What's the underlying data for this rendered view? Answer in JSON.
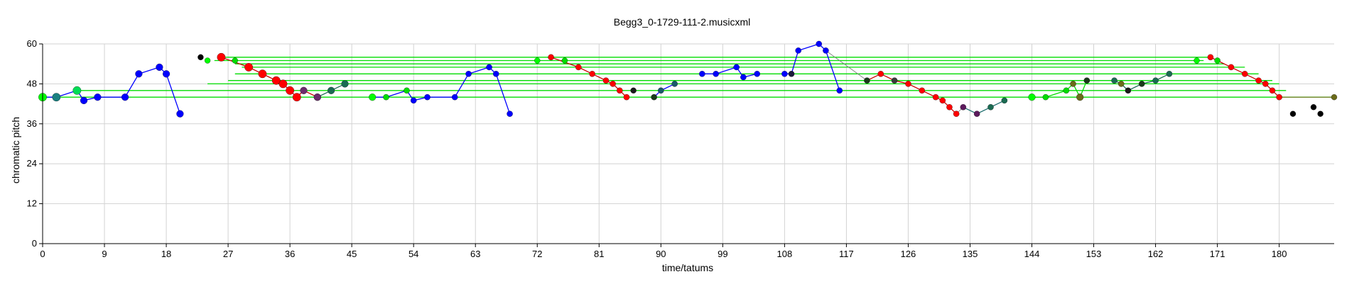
{
  "chart_data": {
    "type": "line",
    "title": "Begg3_0-1729-111-2.musicxml",
    "xlabel": "time/tatums",
    "ylabel": "chromatic pitch",
    "xlim": [
      0,
      188
    ],
    "ylim": [
      0,
      60
    ],
    "xticks": [
      0,
      9,
      18,
      27,
      36,
      45,
      54,
      63,
      72,
      81,
      90,
      99,
      108,
      117,
      126,
      135,
      144,
      153,
      162,
      171,
      180
    ],
    "yticks": [
      0,
      12,
      24,
      36,
      48,
      60
    ],
    "grid": true,
    "colors": {
      "green": "#00e600",
      "bright_green": "#00ff00",
      "red": "#ff0000",
      "dark_red": "#cc0000",
      "blue": "#0000ff",
      "black": "#000000",
      "grid": "#d3d3d3",
      "teal": "#1a6b52",
      "purple": "#5c1a5c",
      "olive": "#6b6b1a",
      "orange_line": "#a0522d",
      "gray_line": "#808080"
    },
    "hlines": [
      {
        "y": 44,
        "x0": 0,
        "x1": 188,
        "color": "#00dd00"
      },
      {
        "y": 46,
        "x0": 5,
        "x1": 181,
        "color": "#00dd00"
      },
      {
        "y": 48,
        "x0": 24,
        "x1": 180,
        "color": "#00dd00"
      },
      {
        "y": 49,
        "x0": 27,
        "x1": 179,
        "color": "#00dd00"
      },
      {
        "y": 51,
        "x0": 28,
        "x1": 177,
        "color": "#00dd00"
      },
      {
        "y": 53,
        "x0": 29,
        "x1": 175,
        "color": "#00dd00"
      },
      {
        "y": 54,
        "x0": 28,
        "x1": 172,
        "color": "#00dd00"
      },
      {
        "y": 55,
        "x0": 25,
        "x1": 169,
        "color": "#00dd00"
      },
      {
        "y": 56,
        "x0": 26,
        "x1": 170,
        "color": "#00dd00"
      }
    ],
    "series": [
      {
        "name": "blue-phrase-1",
        "color": "#0000ff",
        "line_color": "#0000ff",
        "points": [
          [
            0,
            44
          ],
          [
            2,
            44
          ],
          [
            5,
            46
          ],
          [
            6,
            43
          ],
          [
            8,
            44
          ],
          [
            12,
            44
          ],
          [
            14,
            51
          ],
          [
            17,
            53
          ],
          [
            18,
            51
          ],
          [
            20,
            39
          ]
        ],
        "sizes": [
          7,
          7,
          7,
          6,
          6,
          6,
          6,
          6,
          6,
          6
        ],
        "colors": [
          "#00ff00",
          "#1a8080",
          "#00dd55",
          "#0000ff",
          "#0000ff",
          "#0000ff",
          "#0000ff",
          "#0000ff",
          "#0000ff",
          "#0000ff"
        ]
      },
      {
        "name": "red-phrase-1",
        "color": "#ff0000",
        "line_color": "#cc0000",
        "points": [
          [
            26,
            56
          ],
          [
            30,
            53
          ],
          [
            32,
            51
          ],
          [
            34,
            49
          ],
          [
            35,
            48
          ],
          [
            36,
            46
          ],
          [
            37,
            44
          ],
          [
            38,
            46
          ],
          [
            40,
            44
          ]
        ],
        "sizes": [
          7,
          7,
          7,
          7,
          7,
          7,
          7,
          6,
          6
        ],
        "colors": [
          "#ff0000",
          "#ff0000",
          "#ff0000",
          "#ff0000",
          "#ff0000",
          "#ff0000",
          "#ff0000",
          "#6b2a6b",
          "#6b2a6b"
        ]
      },
      {
        "name": "teal-tail-1",
        "color": "#1a6b52",
        "line_color": "#1a6b52",
        "points": [
          [
            40,
            44
          ],
          [
            42,
            46
          ],
          [
            44,
            48
          ]
        ],
        "sizes": [
          6,
          6,
          6
        ],
        "colors": [
          "#6b2a6b",
          "#1a6b52",
          "#1a6b52"
        ]
      },
      {
        "name": "blue-phrase-2",
        "color": "#0000ff",
        "line_color": "#0000ff",
        "points": [
          [
            48,
            44
          ],
          [
            50,
            44
          ],
          [
            53,
            46
          ],
          [
            54,
            43
          ],
          [
            56,
            44
          ],
          [
            60,
            44
          ],
          [
            62,
            51
          ],
          [
            65,
            53
          ],
          [
            66,
            51
          ],
          [
            68,
            39
          ]
        ],
        "sizes": [
          6,
          5,
          5,
          5,
          5,
          5,
          5,
          5,
          5,
          5
        ],
        "colors": [
          "#00ff00",
          "#00dd00",
          "#00dd00",
          "#0000ff",
          "#0000ff",
          "#0000ff",
          "#0000ff",
          "#0000ff",
          "#0000ff",
          "#0000ff"
        ]
      },
      {
        "name": "red-phrase-2",
        "color": "#ff0000",
        "line_color": "#cc0000",
        "points": [
          [
            74,
            56
          ],
          [
            78,
            53
          ],
          [
            80,
            51
          ],
          [
            82,
            49
          ],
          [
            83,
            48
          ],
          [
            84,
            46
          ],
          [
            85,
            44
          ]
        ],
        "sizes": [
          5,
          5,
          5,
          5,
          5,
          5,
          5
        ],
        "colors": [
          "#ff0000",
          "#ff0000",
          "#ff0000",
          "#ff0000",
          "#ff0000",
          "#ff0000",
          "#ff0000"
        ]
      },
      {
        "name": "blue-phrase-3",
        "color": "#0000ff",
        "line_color": "#0000ff",
        "points": [
          [
            89,
            44
          ],
          [
            90,
            46
          ],
          [
            92,
            48
          ]
        ],
        "sizes": [
          5,
          5,
          5
        ],
        "colors": [
          "#1a3a1a",
          "#1a5a6b",
          "#1a5a6b"
        ]
      },
      {
        "name": "blue-phrase-4",
        "color": "#0000ff",
        "line_color": "#0000ff",
        "points": [
          [
            96,
            51
          ],
          [
            98,
            51
          ],
          [
            101,
            53
          ],
          [
            102,
            50
          ],
          [
            104,
            51
          ]
        ],
        "sizes": [
          5,
          5,
          5,
          5,
          5
        ],
        "colors": [
          "#0000ff",
          "#0000ff",
          "#0000ff",
          "#0000ff",
          "#0000ff"
        ]
      },
      {
        "name": "blue-phrase-5",
        "color": "#0000ff",
        "line_color": "#0000ff",
        "points": [
          [
            108,
            51
          ],
          [
            109,
            51
          ],
          [
            110,
            58
          ],
          [
            113,
            60
          ],
          [
            114,
            58
          ],
          [
            116,
            46
          ]
        ],
        "sizes": [
          5,
          5,
          5,
          5,
          5,
          5
        ],
        "colors": [
          "#0000ff",
          "#1a1a3a",
          "#0000ff",
          "#0000ff",
          "#0000ff",
          "#0000ff"
        ]
      },
      {
        "name": "red-phrase-3",
        "color": "#ff0000",
        "line_color": "#cc0000",
        "points": [
          [
            120,
            49
          ],
          [
            122,
            51
          ],
          [
            124,
            49
          ],
          [
            126,
            48
          ],
          [
            128,
            46
          ],
          [
            130,
            44
          ],
          [
            131,
            43
          ],
          [
            132,
            41
          ],
          [
            133,
            39
          ]
        ],
        "sizes": [
          5,
          5,
          5,
          5,
          5,
          5,
          5,
          5,
          5
        ],
        "colors": [
          "#1a3a1a",
          "#ff0000",
          "#3a3a3a",
          "#ff0000",
          "#ff0000",
          "#ff0000",
          "#ff0000",
          "#ff0000",
          "#ff0000"
        ]
      },
      {
        "name": "teal-phrase-3",
        "color": "#1a6b52",
        "line_color": "#1a6b6b",
        "points": [
          [
            134,
            41
          ],
          [
            136,
            39
          ],
          [
            138,
            41
          ],
          [
            140,
            43
          ]
        ],
        "sizes": [
          5,
          5,
          5,
          5
        ],
        "colors": [
          "#5c1a5c",
          "#5c1a5c",
          "#1a6b52",
          "#1a6b52"
        ]
      },
      {
        "name": "green-phrase-4",
        "color": "#00ff00",
        "line_color": "#00dd00",
        "points": [
          [
            144,
            44
          ],
          [
            146,
            44
          ],
          [
            149,
            46
          ],
          [
            150,
            48
          ],
          [
            151,
            44
          ],
          [
            152,
            49
          ]
        ],
        "sizes": [
          6,
          5,
          5,
          5,
          6,
          5
        ],
        "colors": [
          "#00ff00",
          "#00dd00",
          "#00dd00",
          "#6b6b1a",
          "#6b6b1a",
          "#1a3a1a"
        ]
      },
      {
        "name": "teal-phrase-4",
        "color": "#1a6b52",
        "line_color": "#1a6b52",
        "points": [
          [
            156,
            49
          ],
          [
            157,
            48
          ],
          [
            158,
            46
          ],
          [
            160,
            48
          ],
          [
            162,
            49
          ],
          [
            164,
            51
          ]
        ],
        "sizes": [
          5,
          5,
          5,
          5,
          5,
          5
        ],
        "colors": [
          "#1a6b52",
          "#6b6b1a",
          "#1a1a1a",
          "#1a3a1a",
          "#1a6b52",
          "#1a6b52"
        ]
      },
      {
        "name": "red-phrase-4",
        "color": "#ff0000",
        "line_color": "#cc0000",
        "points": [
          [
            170,
            56
          ],
          [
            171,
            55
          ],
          [
            173,
            53
          ],
          [
            175,
            51
          ],
          [
            177,
            49
          ],
          [
            178,
            48
          ],
          [
            179,
            46
          ],
          [
            180,
            44
          ]
        ],
        "sizes": [
          5,
          5,
          5,
          5,
          5,
          5,
          5,
          5
        ],
        "colors": [
          "#ff0000",
          "#00dd00",
          "#ff0000",
          "#ff0000",
          "#ff0000",
          "#ff0000",
          "#ff0000",
          "#ff0000"
        ]
      }
    ],
    "scatter": [
      {
        "x": 23,
        "y": 56,
        "color": "#000000"
      },
      {
        "x": 24,
        "y": 55,
        "color": "#00ff00"
      },
      {
        "x": 28,
        "y": 55,
        "color": "#00dd00"
      },
      {
        "x": 72,
        "y": 55,
        "color": "#00ff00"
      },
      {
        "x": 76,
        "y": 55,
        "color": "#00dd00"
      },
      {
        "x": 86,
        "y": 46,
        "color": "#1a1a1a"
      },
      {
        "x": 168,
        "y": 55,
        "color": "#00ff00"
      },
      {
        "x": 182,
        "y": 39,
        "color": "#000000"
      },
      {
        "x": 185,
        "y": 41,
        "color": "#000000"
      },
      {
        "x": 186,
        "y": 39,
        "color": "#000000"
      },
      {
        "x": 188,
        "y": 44,
        "color": "#6b6b1a"
      }
    ],
    "connectors": [
      {
        "from": [
          114,
          58
        ],
        "to": [
          120,
          49
        ],
        "color": "#808080"
      },
      {
        "from": [
          133,
          39
        ],
        "to": [
          134,
          41
        ],
        "color": "#808080"
      },
      {
        "from": [
          180,
          44
        ],
        "to": [
          188,
          44
        ],
        "color": "#a0522d"
      }
    ]
  }
}
